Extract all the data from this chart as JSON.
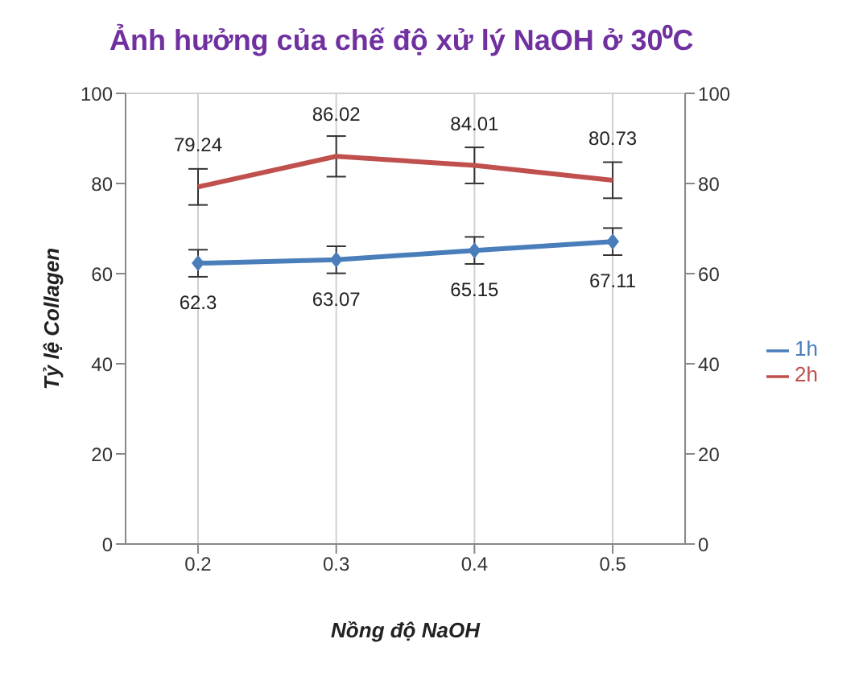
{
  "chart_data": {
    "type": "line",
    "title": "Ảnh hưởng của chế độ xử lý NaOH ở 30⁰C",
    "xlabel": "Nồng độ NaOH",
    "ylabel": "Tỷ lệ Collagen",
    "categories": [
      "0.2",
      "0.3",
      "0.4",
      "0.5"
    ],
    "series": [
      {
        "name": "2h",
        "color": "#c0504d",
        "values": [
          79.24,
          86.02,
          84.01,
          80.73
        ],
        "errors": [
          4,
          4.5,
          4,
          4
        ],
        "marker": "none"
      },
      {
        "name": "1h",
        "color": "#4a7ebb",
        "values": [
          62.3,
          63.07,
          65.15,
          67.11
        ],
        "errors": [
          3,
          3,
          3,
          3
        ],
        "marker": "diamond"
      }
    ],
    "ylim": [
      0,
      100
    ],
    "yticks": [
      0,
      20,
      40,
      60,
      80,
      100
    ],
    "y2lim": [
      0,
      100
    ],
    "y2ticks": [
      0,
      20,
      40,
      60,
      80,
      100
    ],
    "grid": true,
    "legend": "right",
    "data_labels": true
  }
}
